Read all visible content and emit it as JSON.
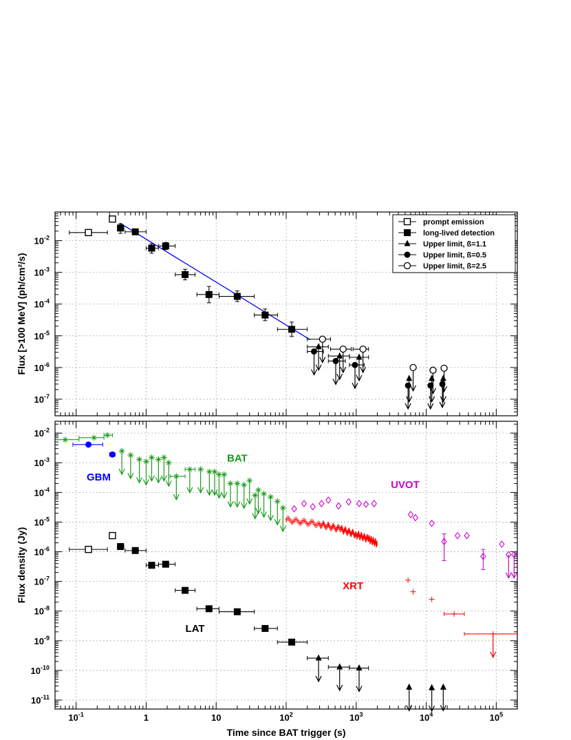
{
  "chart_data": [
    {
      "type": "scatter",
      "panel": "top",
      "xscale": "log",
      "yscale": "log",
      "xlim": [
        0.05,
        200000
      ],
      "ylim": [
        3e-08,
        0.08
      ],
      "grid": true,
      "ylabel": "Flux [>100 MeV] (ph/cm²/s)",
      "xlabel": "",
      "legend_position": "top-right",
      "x_tick_labels": [
        {
          "v": 0.1,
          "base": "10",
          "exp": "-1"
        },
        {
          "v": 1,
          "base": "1",
          "exp": ""
        },
        {
          "v": 10,
          "base": "10",
          "exp": ""
        },
        {
          "v": 100,
          "base": "10",
          "exp": "2"
        },
        {
          "v": 1000,
          "base": "10",
          "exp": "3"
        },
        {
          "v": 10000,
          "base": "10",
          "exp": "4"
        },
        {
          "v": 100000,
          "base": "10",
          "exp": "5"
        }
      ],
      "y_tick_labels": [
        {
          "v": 1e-07,
          "base": "10",
          "exp": "-7"
        },
        {
          "v": 1e-06,
          "base": "10",
          "exp": "-6"
        },
        {
          "v": 1e-05,
          "base": "10",
          "exp": "-5"
        },
        {
          "v": 0.0001,
          "base": "10",
          "exp": "-4"
        },
        {
          "v": 0.001,
          "base": "10",
          "exp": "-3"
        },
        {
          "v": 0.01,
          "base": "10",
          "exp": "-2"
        }
      ],
      "fit_line": {
        "color": "#0000ff",
        "points": [
          [
            0.42,
            0.036
          ],
          [
            220,
            7.5e-06
          ]
        ]
      },
      "series": [
        {
          "name": "prompt emission",
          "marker": "open-square",
          "color": "#000000",
          "points": [
            {
              "x": 0.15,
              "y": 0.018,
              "xlo": 0.08,
              "xhi": 0.28
            },
            {
              "x": 0.33,
              "y": 0.048,
              "xlo": 0.3,
              "xhi": 0.36
            }
          ]
        },
        {
          "name": "long-lived detection",
          "marker": "filled-square",
          "color": "#000000",
          "points": [
            {
              "x": 0.43,
              "y": 0.025,
              "xlo": 0.39,
              "xhi": 0.48,
              "ylo": 0.017,
              "yhi": 0.034
            },
            {
              "x": 0.7,
              "y": 0.019,
              "xlo": 0.5,
              "xhi": 1.0
            },
            {
              "x": 1.2,
              "y": 0.0058,
              "xlo": 1.0,
              "xhi": 1.5,
              "ylo": 0.004,
              "yhi": 0.008
            },
            {
              "x": 1.9,
              "y": 0.0068,
              "xlo": 1.5,
              "xhi": 2.6,
              "ylo": 0.0052,
              "yhi": 0.0088
            },
            {
              "x": 3.6,
              "y": 0.00085,
              "xlo": 2.6,
              "xhi": 5.0,
              "ylo": 0.00058,
              "yhi": 0.00125
            },
            {
              "x": 7.9,
              "y": 0.0002,
              "xlo": 5.3,
              "xhi": 11.0,
              "ylo": 0.00011,
              "yhi": 0.00036
            },
            {
              "x": 20,
              "y": 0.000175,
              "xlo": 11,
              "xhi": 35,
              "ylo": 0.00012,
              "yhi": 0.00026
            },
            {
              "x": 50,
              "y": 4.5e-05,
              "xlo": 35,
              "xhi": 75,
              "ylo": 3e-05,
              "yhi": 7e-05
            },
            {
              "x": 120,
              "y": 1.6e-05,
              "xlo": 75,
              "xhi": 200,
              "ylo": 9.5e-06,
              "yhi": 2.7e-05
            }
          ]
        },
        {
          "name": "Upper limit, ß=1.1",
          "marker": "filled-triangle-ul",
          "color": "#000000",
          "points": [
            {
              "x": 290,
              "y": 4.5e-06,
              "xlo": 200,
              "xhi": 400
            },
            {
              "x": 580,
              "y": 2.3e-06,
              "xlo": 400,
              "xhi": 800
            },
            {
              "x": 1100,
              "y": 2.1e-06,
              "xlo": 800,
              "xhi": 1500
            },
            {
              "x": 5700,
              "y": 4.5e-07
            },
            {
              "x": 12000,
              "y": 4.5e-07
            },
            {
              "x": 17500,
              "y": 4.5e-07
            }
          ]
        },
        {
          "name": "Upper limit, ß=0.5",
          "marker": "filled-circle-ul",
          "color": "#000000",
          "points": [
            {
              "x": 250,
              "y": 3.2e-06,
              "xlo": 200,
              "xhi": 340
            },
            {
              "x": 510,
              "y": 1.6e-06,
              "xlo": 400,
              "xhi": 700
            },
            {
              "x": 960,
              "y": 1.2e-06,
              "xlo": 800,
              "xhi": 1300
            },
            {
              "x": 5500,
              "y": 2.7e-07
            },
            {
              "x": 11500,
              "y": 2.7e-07
            },
            {
              "x": 17000,
              "y": 3e-07
            }
          ]
        },
        {
          "name": "Upper limit, ß=2.5",
          "marker": "open-circle-ul",
          "color": "#000000",
          "points": [
            {
              "x": 330,
              "y": 7.8e-06,
              "xlo": 200,
              "xhi": 430
            },
            {
              "x": 650,
              "y": 3.8e-06,
              "xlo": 430,
              "xhi": 850
            },
            {
              "x": 1250,
              "y": 3.8e-06,
              "xlo": 900,
              "xhi": 1500
            },
            {
              "x": 6500,
              "y": 1e-06
            },
            {
              "x": 12500,
              "y": 8.2e-07
            },
            {
              "x": 18000,
              "y": 9.5e-07
            }
          ]
        }
      ]
    },
    {
      "type": "scatter",
      "panel": "bottom",
      "xscale": "log",
      "yscale": "log",
      "xlim": [
        0.05,
        200000
      ],
      "ylim": [
        5e-12,
        0.025
      ],
      "grid": true,
      "ylabel": "Flux density (Jy)",
      "xlabel": "Time since BAT trigger (s)",
      "x_tick_labels": [
        {
          "v": 0.1,
          "base": "10",
          "exp": "-1"
        },
        {
          "v": 1,
          "base": "1",
          "exp": ""
        },
        {
          "v": 10,
          "base": "10",
          "exp": ""
        },
        {
          "v": 100,
          "base": "10",
          "exp": "2"
        },
        {
          "v": 1000,
          "base": "10",
          "exp": "3"
        },
        {
          "v": 10000,
          "base": "10",
          "exp": "4"
        },
        {
          "v": 100000,
          "base": "10",
          "exp": "5"
        }
      ],
      "y_tick_labels": [
        {
          "v": 1e-11,
          "base": "10",
          "exp": "-11"
        },
        {
          "v": 1e-10,
          "base": "10",
          "exp": "-10"
        },
        {
          "v": 1e-09,
          "base": "10",
          "exp": "-9"
        },
        {
          "v": 1e-08,
          "base": "10",
          "exp": "-8"
        },
        {
          "v": 1e-07,
          "base": "10",
          "exp": "-7"
        },
        {
          "v": 1e-06,
          "base": "10",
          "exp": "-6"
        },
        {
          "v": 1e-05,
          "base": "10",
          "exp": "-5"
        },
        {
          "v": 0.0001,
          "base": "10",
          "exp": "-4"
        },
        {
          "v": 0.001,
          "base": "10",
          "exp": "-3"
        },
        {
          "v": 0.01,
          "base": "10",
          "exp": "-2"
        }
      ],
      "annotations": [
        {
          "text": "BAT",
          "x": 20,
          "y": 0.0011,
          "color": "#1a9a1a"
        },
        {
          "text": "GBM",
          "x": 0.21,
          "y": 0.00025,
          "color": "#0000ff"
        },
        {
          "text": "UVOT",
          "x": 5000,
          "y": 0.00014,
          "color": "#cc00cc"
        },
        {
          "text": "XRT",
          "x": 900,
          "y": 5.5e-08,
          "color": "#ff0000"
        },
        {
          "text": "LAT",
          "x": 5,
          "y": 2e-09,
          "color": "#000000"
        }
      ],
      "series": [
        {
          "name": "BAT",
          "color": "#1a9a1a",
          "marker": "star",
          "points": [
            {
              "x": 0.07,
              "y": 0.006,
              "xlo": 0.05,
              "xhi": 0.11
            },
            {
              "x": 0.18,
              "y": 0.007,
              "xlo": 0.11,
              "xhi": 0.25
            },
            {
              "x": 0.28,
              "y": 0.0085,
              "xlo": 0.25,
              "xhi": 0.33
            },
            {
              "x": 0.45,
              "y": 0.0025
            },
            {
              "x": 0.6,
              "y": 0.0018
            },
            {
              "x": 0.8,
              "y": 0.0013
            },
            {
              "x": 1.0,
              "y": 0.0011
            },
            {
              "x": 1.2,
              "y": 0.0015
            },
            {
              "x": 1.5,
              "y": 0.0013
            },
            {
              "x": 1.8,
              "y": 0.0015
            },
            {
              "x": 2.1,
              "y": 0.001
            },
            {
              "x": 2.7,
              "y": 0.00035,
              "xlo": 2.2,
              "xhi": 3.6
            },
            {
              "x": 4.2,
              "y": 0.0006,
              "xlo": 3.6,
              "xhi": 5.0
            },
            {
              "x": 6,
              "y": 0.0006
            },
            {
              "x": 8,
              "y": 0.0005
            },
            {
              "x": 9.5,
              "y": 0.0005
            },
            {
              "x": 11,
              "y": 0.0004
            },
            {
              "x": 13,
              "y": 0.0004
            },
            {
              "x": 16,
              "y": 0.0002
            },
            {
              "x": 20,
              "y": 0.0002
            },
            {
              "x": 25,
              "y": 0.00018
            },
            {
              "x": 30,
              "y": 0.00025
            },
            {
              "x": 36,
              "y": 8e-05
            },
            {
              "x": 40,
              "y": 0.00012
            },
            {
              "x": 48,
              "y": 9e-05
            },
            {
              "x": 60,
              "y": 7e-05
            },
            {
              "x": 75,
              "y": 5e-05
            },
            {
              "x": 90,
              "y": 3e-05
            }
          ]
        },
        {
          "name": "GBM",
          "color": "#0000ff",
          "marker": "filled-circle",
          "points": [
            {
              "x": 0.15,
              "y": 0.0041,
              "xlo": 0.09,
              "xhi": 0.24
            },
            {
              "x": 0.33,
              "y": 0.0019,
              "xlo": 0.3,
              "xhi": 0.36
            }
          ]
        },
        {
          "name": "UVOT",
          "color": "#cc00cc",
          "marker": "open-diamond",
          "points": [
            {
              "x": 130,
              "y": 2.8e-05
            },
            {
              "x": 180,
              "y": 4.2e-05
            },
            {
              "x": 240,
              "y": 3.3e-05
            },
            {
              "x": 320,
              "y": 4.2e-05
            },
            {
              "x": 400,
              "y": 5.5e-05
            },
            {
              "x": 560,
              "y": 3.5e-05
            },
            {
              "x": 780,
              "y": 4.8e-05
            },
            {
              "x": 1100,
              "y": 4.2e-05
            },
            {
              "x": 1380,
              "y": 4e-05
            },
            {
              "x": 1800,
              "y": 4.2e-05
            },
            {
              "x": 6000,
              "y": 1.8e-05
            },
            {
              "x": 7000,
              "y": 1.4e-05
            },
            {
              "x": 12000,
              "y": 9e-06
            },
            {
              "x": 18000,
              "y": 2.2e-06,
              "ylo": 5e-07,
              "yhi": 4e-06
            },
            {
              "x": 28000,
              "y": 3.5e-06
            },
            {
              "x": 38000,
              "y": 3.5e-06
            },
            {
              "x": 65000,
              "y": 7e-07,
              "ylo": 2.5e-07,
              "yhi": 1.2e-06
            },
            {
              "x": 120000,
              "y": 1.8e-06
            },
            {
              "x": 150000,
              "y": 8e-07
            },
            {
              "x": 180000,
              "y": 8e-07
            }
          ]
        },
        {
          "name": "XRT",
          "color": "#ff0000",
          "marker": "cross",
          "trend": [
            [
              100,
              1.2e-05
            ],
            [
              300,
              8.5e-06
            ],
            [
              600,
              5.8e-06
            ],
            [
              1000,
              3.8e-06
            ],
            [
              1500,
              2.7e-06
            ],
            [
              2000,
              1.9e-06
            ]
          ],
          "points": [
            {
              "x": 5500,
              "y": 1.1e-07
            },
            {
              "x": 6500,
              "y": 4.5e-08
            },
            {
              "x": 12000,
              "y": 2.5e-08
            },
            {
              "x": 25000,
              "y": 8e-09,
              "xlo": 18000,
              "xhi": 35000
            },
            {
              "x": 90000,
              "y": 1.7e-09,
              "xlo": 35000,
              "xhi": 200000
            }
          ]
        },
        {
          "name": "LAT",
          "color": "#000000",
          "marker": "filled-square",
          "points": [
            {
              "x": 0.15,
              "y": 1.2e-06,
              "xlo": 0.08,
              "xhi": 0.28,
              "open": true
            },
            {
              "x": 0.33,
              "y": 3.5e-06,
              "xlo": 0.3,
              "xhi": 0.36,
              "open": true
            },
            {
              "x": 0.43,
              "y": 1.5e-06,
              "xlo": 0.39,
              "xhi": 0.48
            },
            {
              "x": 0.7,
              "y": 1.1e-06,
              "xlo": 0.5,
              "xhi": 1.0
            },
            {
              "x": 1.2,
              "y": 3.5e-07,
              "xlo": 1.0,
              "xhi": 1.5
            },
            {
              "x": 1.9,
              "y": 3.8e-07,
              "xlo": 1.5,
              "xhi": 2.6
            },
            {
              "x": 3.6,
              "y": 5e-08,
              "xlo": 2.6,
              "xhi": 5.0
            },
            {
              "x": 7.9,
              "y": 1.2e-08,
              "xlo": 5.3,
              "xhi": 11.0
            },
            {
              "x": 20,
              "y": 9.5e-09,
              "xlo": 11,
              "xhi": 35
            },
            {
              "x": 50,
              "y": 2.6e-09,
              "xlo": 35,
              "xhi": 75
            },
            {
              "x": 120,
              "y": 9e-10,
              "xlo": 75,
              "xhi": 200
            },
            {
              "x": 290,
              "y": 2.6e-10,
              "xlo": 200,
              "xhi": 400
            },
            {
              "x": 580,
              "y": 1.3e-10,
              "xlo": 400,
              "xhi": 800
            },
            {
              "x": 1100,
              "y": 1.2e-10,
              "xlo": 800,
              "xhi": 1500
            },
            {
              "x": 5700,
              "y": 2.7e-11
            },
            {
              "x": 12000,
              "y": 2.6e-11
            },
            {
              "x": 17500,
              "y": 2.7e-11
            }
          ]
        }
      ]
    }
  ]
}
